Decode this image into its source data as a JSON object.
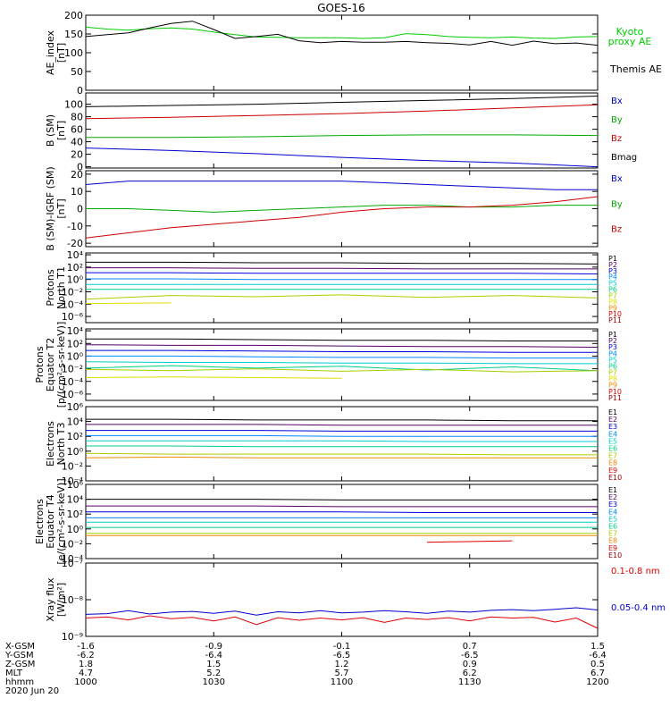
{
  "title": "GOES-16",
  "date": "2020 Jun 20",
  "chart_data": [
    {
      "id": "ae",
      "type": "line",
      "ylabel": [
        "AE_index",
        "[nT]"
      ],
      "yscale": "linear",
      "ylim": [
        0,
        200
      ],
      "yticks": [
        0,
        50,
        100,
        150,
        200
      ],
      "legend": [
        {
          "text": "Kyoto",
          "color": "#00cc00"
        },
        {
          "text": "proxy AE",
          "color": "#00cc00"
        },
        {
          "text": "Themis AE",
          "color": "#000000"
        }
      ],
      "x": [
        0,
        5,
        10,
        15,
        20,
        25,
        30,
        35,
        40,
        45,
        50,
        55,
        60,
        65,
        70,
        75,
        80,
        85,
        90,
        95,
        100,
        105,
        110,
        115,
        120
      ],
      "series": [
        {
          "color": "#00cc00",
          "values": [
            168,
            163,
            160,
            164,
            166,
            163,
            155,
            148,
            142,
            141,
            140,
            140,
            140,
            138,
            140,
            151,
            148,
            143,
            141,
            140,
            142,
            139,
            138,
            142,
            143
          ]
        },
        {
          "color": "#000000",
          "values": [
            143,
            148,
            153,
            166,
            178,
            184,
            162,
            138,
            143,
            149,
            132,
            127,
            130,
            128,
            128,
            130,
            127,
            125,
            121,
            130,
            120,
            131,
            124,
            126,
            120
          ]
        }
      ]
    },
    {
      "id": "bsm",
      "type": "line",
      "ylabel": [
        "B (SM)",
        "[nT]"
      ],
      "yscale": "linear",
      "ylim": [
        -2,
        118
      ],
      "yticks": [
        0,
        20,
        40,
        60,
        80,
        100
      ],
      "legend": [
        {
          "text": "Bx",
          "color": "#0000cc"
        },
        {
          "text": "By",
          "color": "#00aa00"
        },
        {
          "text": "Bz",
          "color": "#cc0000"
        },
        {
          "text": "Bmag",
          "color": "#000000"
        }
      ],
      "x": [
        0,
        20,
        40,
        60,
        80,
        100,
        120
      ],
      "series": [
        {
          "color": "#000000",
          "values": [
            96,
            98,
            100,
            103,
            106,
            109,
            113
          ]
        },
        {
          "color": "#cc0000",
          "values": [
            77,
            79,
            82,
            85,
            89,
            94,
            99
          ]
        },
        {
          "color": "#00aa00",
          "values": [
            47,
            47,
            48,
            50,
            51,
            51,
            50
          ]
        },
        {
          "color": "#0000cc",
          "values": [
            30,
            26,
            21,
            15,
            10,
            6,
            0
          ]
        }
      ]
    },
    {
      "id": "birgf",
      "type": "line",
      "ylabel": [
        "B (SM)-IGRF (SM)",
        "[nT]"
      ],
      "yscale": "linear",
      "ylim": [
        -22,
        22
      ],
      "yticks": [
        -20,
        -10,
        0,
        10,
        20
      ],
      "legend": [
        {
          "text": "Bx",
          "color": "#0000cc"
        },
        {
          "text": "By",
          "color": "#00aa00"
        },
        {
          "text": "Bz",
          "color": "#cc0000"
        }
      ],
      "x": [
        0,
        10,
        20,
        30,
        40,
        50,
        60,
        70,
        80,
        90,
        100,
        110,
        120
      ],
      "series": [
        {
          "color": "#0000cc",
          "values": [
            14,
            16,
            16,
            16,
            16,
            16,
            16,
            15,
            14,
            13,
            12,
            11,
            11
          ]
        },
        {
          "color": "#00aa00",
          "values": [
            0,
            0,
            -1,
            -2,
            -1,
            0,
            1,
            2,
            2,
            1,
            1,
            2,
            2
          ]
        },
        {
          "color": "#cc0000",
          "values": [
            -17,
            -14,
            -11,
            -9,
            -7,
            -5,
            -2,
            0,
            1,
            1,
            2,
            4,
            7
          ]
        }
      ]
    },
    {
      "id": "protons_north",
      "type": "line",
      "ylabel": [
        "Protons",
        "North T1"
      ],
      "yscale": "log",
      "ylim": [
        -7,
        4.3
      ],
      "yticks": [
        -6,
        -4,
        -2,
        0,
        2,
        4
      ],
      "legend": [
        {
          "text": "P1",
          "color": "#000000"
        },
        {
          "text": "P2",
          "color": "#550066"
        },
        {
          "text": "P3",
          "color": "#0000dd"
        },
        {
          "text": "P4",
          "color": "#0088ff"
        },
        {
          "text": "P5",
          "color": "#00cccc"
        },
        {
          "text": "P6",
          "color": "#00cc88"
        },
        {
          "text": "P7",
          "color": "#aacc00"
        },
        {
          "text": "P8",
          "color": "#dddd00"
        },
        {
          "text": "P9",
          "color": "#ee8800"
        },
        {
          "text": "P10",
          "color": "#dd0000"
        },
        {
          "text": "P11",
          "color": "#990000"
        }
      ],
      "x": [
        0,
        20,
        40,
        60,
        80,
        100,
        120
      ],
      "series": [
        {
          "color": "#000000",
          "values": [
            2.8,
            2.8,
            2.7,
            2.7,
            2.6,
            2.6,
            2.5
          ]
        },
        {
          "color": "#550066",
          "values": [
            1.9,
            1.9,
            1.8,
            1.8,
            1.7,
            1.7,
            1.7
          ]
        },
        {
          "color": "#0000dd",
          "values": [
            1.1,
            1.1,
            1.0,
            1.0,
            1.0,
            1.0,
            0.9
          ]
        },
        {
          "color": "#0088ff",
          "values": [
            0.1,
            0.1,
            0.0,
            0.0,
            0.0,
            0.0,
            0.0
          ]
        },
        {
          "color": "#00cccc",
          "values": [
            -0.8,
            -0.8,
            -0.8,
            -0.8,
            -0.8,
            -0.8,
            -0.8
          ]
        },
        {
          "color": "#00cc88",
          "values": [
            -1.6,
            -1.6,
            -1.6,
            -1.6,
            -1.6,
            -1.6,
            -1.6
          ]
        },
        {
          "color": "#aacc00",
          "values": [
            -3.2,
            -2.6,
            -2.8,
            -2.5,
            -2.9,
            -2.6,
            -3.0
          ]
        },
        {
          "color": "#dddd00",
          "values": [
            -3.9,
            -3.8,
            null,
            null,
            null,
            null,
            -3.7
          ]
        }
      ]
    },
    {
      "id": "protons_equator",
      "type": "line",
      "ylabel": [
        "Protons",
        "Equator T2",
        "[p/(cm²-s-sr-keV)]"
      ],
      "yscale": "log",
      "ylim": [
        -7,
        4.3
      ],
      "yticks": [
        -6,
        -4,
        -2,
        0,
        2,
        4
      ],
      "legend": [
        {
          "text": "P1",
          "color": "#000000"
        },
        {
          "text": "P2",
          "color": "#550066"
        },
        {
          "text": "P3",
          "color": "#0000dd"
        },
        {
          "text": "P4",
          "color": "#0088ff"
        },
        {
          "text": "P5",
          "color": "#00cccc"
        },
        {
          "text": "P6",
          "color": "#00cc88"
        },
        {
          "text": "P7",
          "color": "#aacc00"
        },
        {
          "text": "P8",
          "color": "#dddd00"
        },
        {
          "text": "P9",
          "color": "#ee8800"
        },
        {
          "text": "P10",
          "color": "#dd0000"
        },
        {
          "text": "P11",
          "color": "#990000"
        }
      ],
      "x": [
        0,
        20,
        40,
        60,
        80,
        100,
        120
      ],
      "series": [
        {
          "color": "#000000",
          "values": [
            2.7,
            2.7,
            2.6,
            2.5,
            2.5,
            2.4,
            2.4
          ]
        },
        {
          "color": "#550066",
          "values": [
            1.8,
            1.7,
            1.7,
            1.6,
            1.5,
            1.5,
            1.4
          ]
        },
        {
          "color": "#0000dd",
          "values": [
            0.9,
            0.9,
            0.8,
            0.7,
            0.7,
            0.6,
            0.6
          ]
        },
        {
          "color": "#0088ff",
          "values": [
            0.0,
            0.0,
            -0.1,
            -0.2,
            -0.2,
            -0.3,
            -0.3
          ]
        },
        {
          "color": "#00cccc",
          "values": [
            -0.9,
            -1.0,
            -1.0,
            -1.1,
            -1.1,
            -1.2,
            -1.2
          ]
        },
        {
          "color": "#00cc88",
          "values": [
            -1.9,
            -1.5,
            -1.9,
            -1.6,
            -2.2,
            -1.7,
            -2.3
          ]
        },
        {
          "color": "#aacc00",
          "values": [
            -2.1,
            -2.3,
            -2.0,
            -2.4,
            -2.1,
            -2.5,
            -2.3
          ]
        },
        {
          "color": "#dddd00",
          "values": [
            -3.4,
            -3.3,
            -3.4,
            -3.5,
            null,
            null,
            -3.4
          ]
        }
      ]
    },
    {
      "id": "electrons_north",
      "type": "line",
      "ylabel": [
        "Electrons",
        "North T3"
      ],
      "yscale": "log",
      "ylim": [
        -4,
        6
      ],
      "yticks": [
        -4,
        -2,
        0,
        2,
        4,
        6
      ],
      "legend": [
        {
          "text": "E1",
          "color": "#000000"
        },
        {
          "text": "E2",
          "color": "#550066"
        },
        {
          "text": "E3",
          "color": "#0000dd"
        },
        {
          "text": "E4",
          "color": "#0088ff"
        },
        {
          "text": "E5",
          "color": "#00cccc"
        },
        {
          "text": "E6",
          "color": "#00cc88"
        },
        {
          "text": "E7",
          "color": "#aacc00"
        },
        {
          "text": "E8",
          "color": "#ee8800"
        },
        {
          "text": "E9",
          "color": "#dd0000"
        },
        {
          "text": "E10",
          "color": "#990000"
        }
      ],
      "x": [
        0,
        20,
        40,
        60,
        80,
        100,
        120
      ],
      "series": [
        {
          "color": "#000000",
          "values": [
            4.3,
            4.3,
            4.2,
            4.2,
            4.2,
            4.1,
            4.1
          ]
        },
        {
          "color": "#550066",
          "values": [
            3.6,
            3.6,
            3.6,
            3.5,
            3.5,
            3.5,
            3.5
          ]
        },
        {
          "color": "#0000dd",
          "values": [
            2.8,
            2.8,
            2.8,
            2.7,
            2.7,
            2.7,
            2.7
          ]
        },
        {
          "color": "#0088ff",
          "values": [
            2.1,
            2.1,
            2.1,
            2.0,
            2.0,
            2.0,
            2.0
          ]
        },
        {
          "color": "#00cccc",
          "values": [
            1.4,
            1.4,
            1.4,
            1.4,
            1.3,
            1.3,
            1.3
          ]
        },
        {
          "color": "#00cc88",
          "values": [
            0.7,
            0.7,
            0.6,
            0.6,
            0.6,
            0.6,
            0.6
          ]
        },
        {
          "color": "#aacc00",
          "values": [
            -0.3,
            -0.4,
            -0.4,
            -0.4,
            -0.4,
            -0.5,
            -0.5
          ]
        },
        {
          "color": "#ee8800",
          "values": [
            -0.9,
            -0.8,
            -0.9,
            -0.9,
            -0.9,
            -0.9,
            -0.9
          ]
        }
      ]
    },
    {
      "id": "electrons_equator",
      "type": "line",
      "ylabel": [
        "Electrons",
        "Equator T4",
        "[e/(cm²-s-sr-keV)]"
      ],
      "yscale": "log",
      "ylim": [
        -4,
        6
      ],
      "yticks": [
        -4,
        -2,
        0,
        2,
        4,
        6
      ],
      "legend": [
        {
          "text": "E1",
          "color": "#000000"
        },
        {
          "text": "E2",
          "color": "#550066"
        },
        {
          "text": "E3",
          "color": "#0000dd"
        },
        {
          "text": "E4",
          "color": "#0088ff"
        },
        {
          "text": "E5",
          "color": "#00cccc"
        },
        {
          "text": "E6",
          "color": "#00cc88"
        },
        {
          "text": "E7",
          "color": "#aacc00"
        },
        {
          "text": "E8",
          "color": "#ee8800"
        },
        {
          "text": "E9",
          "color": "#dd0000"
        },
        {
          "text": "E10",
          "color": "#990000"
        }
      ],
      "x": [
        0,
        20,
        40,
        60,
        80,
        100,
        120
      ],
      "series": [
        {
          "color": "#000000",
          "values": [
            4.0,
            4.0,
            4.0,
            3.9,
            3.9,
            3.9,
            3.9
          ]
        },
        {
          "color": "#550066",
          "values": [
            3.1,
            3.1,
            3.1,
            3.0,
            3.0,
            3.0,
            3.0
          ]
        },
        {
          "color": "#0000dd",
          "values": [
            2.3,
            2.3,
            2.3,
            2.3,
            2.2,
            2.2,
            2.2
          ]
        },
        {
          "color": "#0088ff",
          "values": [
            1.5,
            1.5,
            1.5,
            1.5,
            1.5,
            1.5,
            1.5
          ]
        },
        {
          "color": "#00cccc",
          "values": [
            0.9,
            0.9,
            0.9,
            0.9,
            0.9,
            0.9,
            0.9
          ]
        },
        {
          "color": "#00cc88",
          "values": [
            0.2,
            0.2,
            0.2,
            0.2,
            0.2,
            0.2,
            0.2
          ]
        },
        {
          "color": "#aacc00",
          "values": [
            -0.6,
            -0.6,
            -0.6,
            -0.6,
            -0.6,
            -0.6,
            -0.6
          ]
        },
        {
          "color": "#ee8800",
          "values": [
            -0.9,
            -0.9,
            -0.9,
            -0.9,
            -0.9,
            -0.9,
            -0.9
          ]
        },
        {
          "color": "#dd0000",
          "values": [
            null,
            -1.6,
            null,
            null,
            -1.8,
            -1.6,
            null
          ]
        }
      ]
    },
    {
      "id": "xray",
      "type": "line",
      "ylabel": [
        "Xray flux",
        "[W/m²]"
      ],
      "yscale": "log",
      "ylim": [
        -9,
        -7
      ],
      "yticks": [
        -9,
        -8,
        -7
      ],
      "legend": [
        {
          "text": "0.1-0.8 nm",
          "color": "#dd0000"
        },
        {
          "text": "0.05-0.4 nm",
          "color": "#0000cc"
        }
      ],
      "x": [
        0,
        5,
        10,
        15,
        20,
        25,
        30,
        35,
        40,
        45,
        50,
        55,
        60,
        65,
        70,
        75,
        80,
        85,
        90,
        95,
        100,
        105,
        110,
        115,
        120
      ],
      "series": [
        {
          "color": "#0000cc",
          "values": [
            -8.4,
            -8.38,
            -8.3,
            -8.39,
            -8.34,
            -8.32,
            -8.37,
            -8.31,
            -8.42,
            -8.33,
            -8.36,
            -8.3,
            -8.36,
            -8.34,
            -8.3,
            -8.33,
            -8.37,
            -8.31,
            -8.34,
            -8.29,
            -8.27,
            -8.3,
            -8.26,
            -8.22,
            -8.28
          ]
        },
        {
          "color": "#dd0000",
          "values": [
            -8.5,
            -8.47,
            -8.55,
            -8.44,
            -8.52,
            -8.48,
            -8.58,
            -8.47,
            -8.68,
            -8.49,
            -8.56,
            -8.5,
            -8.55,
            -8.49,
            -8.62,
            -8.5,
            -8.54,
            -8.49,
            -8.58,
            -8.47,
            -8.5,
            -8.48,
            -8.61,
            -8.5,
            -8.78
          ]
        }
      ]
    }
  ],
  "x_axis": {
    "xlim": [
      0,
      120
    ],
    "row_labels": [
      "X-GSM",
      "Y-GSM",
      "Z-GSM",
      "MLT",
      "hhmm"
    ],
    "ticks": [
      {
        "x": 0,
        "values": [
          "-1.6",
          "-6.2",
          "1.8",
          "4.7",
          "1000"
        ]
      },
      {
        "x": 30,
        "values": [
          "-0.9",
          "-6.4",
          "1.5",
          "5.2",
          "1030"
        ]
      },
      {
        "x": 60,
        "values": [
          "-0.1",
          "-6.5",
          "1.2",
          "5.7",
          "1100"
        ]
      },
      {
        "x": 90,
        "values": [
          "0.7",
          "-6.5",
          "0.9",
          "6.2",
          "1130"
        ]
      },
      {
        "x": 120,
        "values": [
          "1.5",
          "-6.4",
          "0.5",
          "6.7",
          "1200"
        ]
      }
    ]
  }
}
